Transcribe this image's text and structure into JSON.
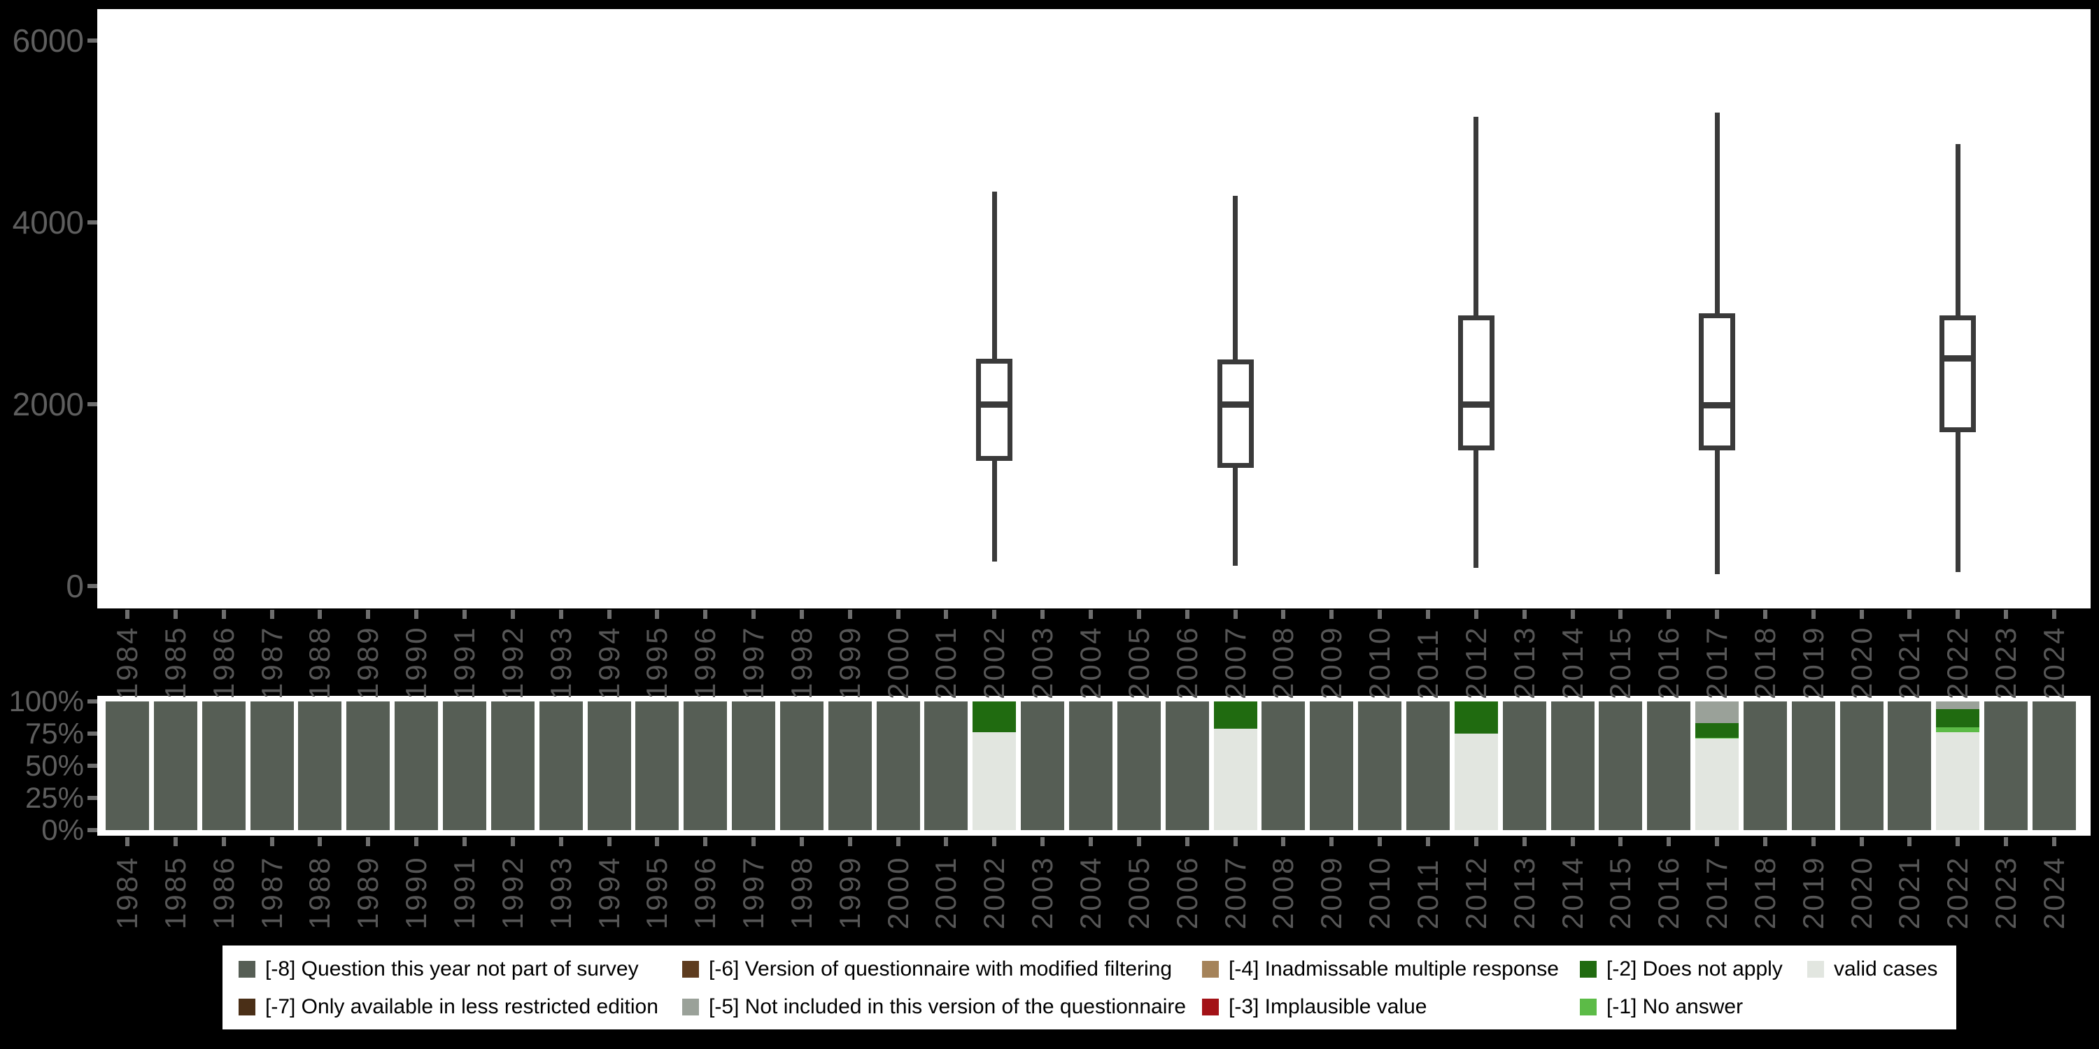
{
  "figure": {
    "background_color": "#000000",
    "panel_color": "#ffffff",
    "axis_text_color": "#5e5e5e",
    "box_stroke_color": "#3a3a3a"
  },
  "years": [
    "1984",
    "1985",
    "1986",
    "1987",
    "1988",
    "1989",
    "1990",
    "1991",
    "1992",
    "1993",
    "1994",
    "1995",
    "1996",
    "1997",
    "1998",
    "1999",
    "2000",
    "2001",
    "2002",
    "2003",
    "2004",
    "2005",
    "2006",
    "2007",
    "2008",
    "2009",
    "2010",
    "2011",
    "2012",
    "2013",
    "2014",
    "2015",
    "2016",
    "2017",
    "2018",
    "2019",
    "2020",
    "2021",
    "2022",
    "2023",
    "2024"
  ],
  "chart_data": [
    {
      "type": "boxplot",
      "title": "",
      "xlabel": "",
      "ylabel": "",
      "grid": false,
      "legend_position": "none",
      "ylim": [
        0,
        6000
      ],
      "y_ticks": [
        0,
        2000,
        4000,
        6000
      ],
      "y_tick_labels": [
        "0",
        "2000",
        "4000",
        "6000"
      ],
      "x_categories": [
        "1984",
        "1985",
        "1986",
        "1987",
        "1988",
        "1989",
        "1990",
        "1991",
        "1992",
        "1993",
        "1994",
        "1995",
        "1996",
        "1997",
        "1998",
        "1999",
        "2000",
        "2001",
        "2002",
        "2003",
        "2004",
        "2005",
        "2006",
        "2007",
        "2008",
        "2009",
        "2010",
        "2011",
        "2012",
        "2013",
        "2014",
        "2015",
        "2016",
        "2017",
        "2018",
        "2019",
        "2020",
        "2021",
        "2022",
        "2023",
        "2024"
      ],
      "series": [
        {
          "x": "2002",
          "min": 270,
          "q1": 1375,
          "median": 2000,
          "q3": 2500,
          "max": 4340
        },
        {
          "x": "2007",
          "min": 220,
          "q1": 1300,
          "median": 2000,
          "q3": 2490,
          "max": 4290
        },
        {
          "x": "2012",
          "min": 200,
          "q1": 1490,
          "median": 2000,
          "q3": 2980,
          "max": 5165
        },
        {
          "x": "2017",
          "min": 130,
          "q1": 1490,
          "median": 1990,
          "q3": 3000,
          "max": 5210
        },
        {
          "x": "2022",
          "min": 150,
          "q1": 1695,
          "median": 2505,
          "q3": 2980,
          "max": 4865
        }
      ]
    },
    {
      "type": "bar",
      "subtype": "stacked_percentage",
      "title": "",
      "xlabel": "",
      "ylabel": "",
      "grid": false,
      "legend_position": "bottom",
      "ylim": [
        0,
        100
      ],
      "y_ticks": [
        0,
        25,
        50,
        75,
        100
      ],
      "y_tick_labels": [
        "0%",
        "25%",
        "50%",
        "75%",
        "100%"
      ],
      "x_categories": [
        "1984",
        "1985",
        "1986",
        "1987",
        "1988",
        "1989",
        "1990",
        "1991",
        "1992",
        "1993",
        "1994",
        "1995",
        "1996",
        "1997",
        "1998",
        "1999",
        "2000",
        "2001",
        "2002",
        "2003",
        "2004",
        "2005",
        "2006",
        "2007",
        "2008",
        "2009",
        "2010",
        "2011",
        "2012",
        "2013",
        "2014",
        "2015",
        "2016",
        "2017",
        "2018",
        "2019",
        "2020",
        "2021",
        "2022",
        "2023",
        "2024"
      ],
      "default_stack_top_to_bottom": [
        {
          "key": "-8",
          "pct": 100
        }
      ],
      "stacks_top_to_bottom": {
        "2002": [
          {
            "key": "-2",
            "pct": 24
          },
          {
            "key": "valid",
            "pct": 76
          }
        ],
        "2007": [
          {
            "key": "-2",
            "pct": 21
          },
          {
            "key": "valid",
            "pct": 79
          }
        ],
        "2012": [
          {
            "key": "-2",
            "pct": 25
          },
          {
            "key": "valid",
            "pct": 75
          }
        ],
        "2017": [
          {
            "key": "-5",
            "pct": 17
          },
          {
            "key": "-2",
            "pct": 11
          },
          {
            "key": "-1",
            "pct": 1
          },
          {
            "key": "valid",
            "pct": 71
          }
        ],
        "2022": [
          {
            "key": "-5",
            "pct": 6
          },
          {
            "key": "-2",
            "pct": 14
          },
          {
            "key": "-1",
            "pct": 4
          },
          {
            "key": "valid",
            "pct": 76
          }
        ]
      }
    }
  ],
  "legend": {
    "items": [
      {
        "key": "-8",
        "label": "[-8] Question this year not part of survey",
        "color": "#565e55",
        "col": 0,
        "row": 0
      },
      {
        "key": "-7",
        "label": "[-7] Only available in less restricted edition",
        "color": "#4a2f17",
        "col": 0,
        "row": 1
      },
      {
        "key": "-6",
        "label": "[-6] Version of questionnaire with modified filtering",
        "color": "#5e3c1f",
        "col": 1,
        "row": 0
      },
      {
        "key": "-5",
        "label": "[-5] Not included in this version of the questionnaire",
        "color": "#9aa199",
        "col": 1,
        "row": 1
      },
      {
        "key": "-4",
        "label": "[-4] Inadmissable multiple response",
        "color": "#a5835a",
        "col": 2,
        "row": 0
      },
      {
        "key": "-3",
        "label": "[-3] Implausible value",
        "color": "#a31217",
        "col": 2,
        "row": 1
      },
      {
        "key": "-2",
        "label": "[-2] Does not apply",
        "color": "#206b10",
        "col": 3,
        "row": 0
      },
      {
        "key": "-1",
        "label": "[-1] No answer",
        "color": "#5cbb47",
        "col": 3,
        "row": 1
      },
      {
        "key": "valid",
        "label": "valid cases",
        "color": "#e2e6e0",
        "col": 4,
        "row": 0
      }
    ]
  }
}
